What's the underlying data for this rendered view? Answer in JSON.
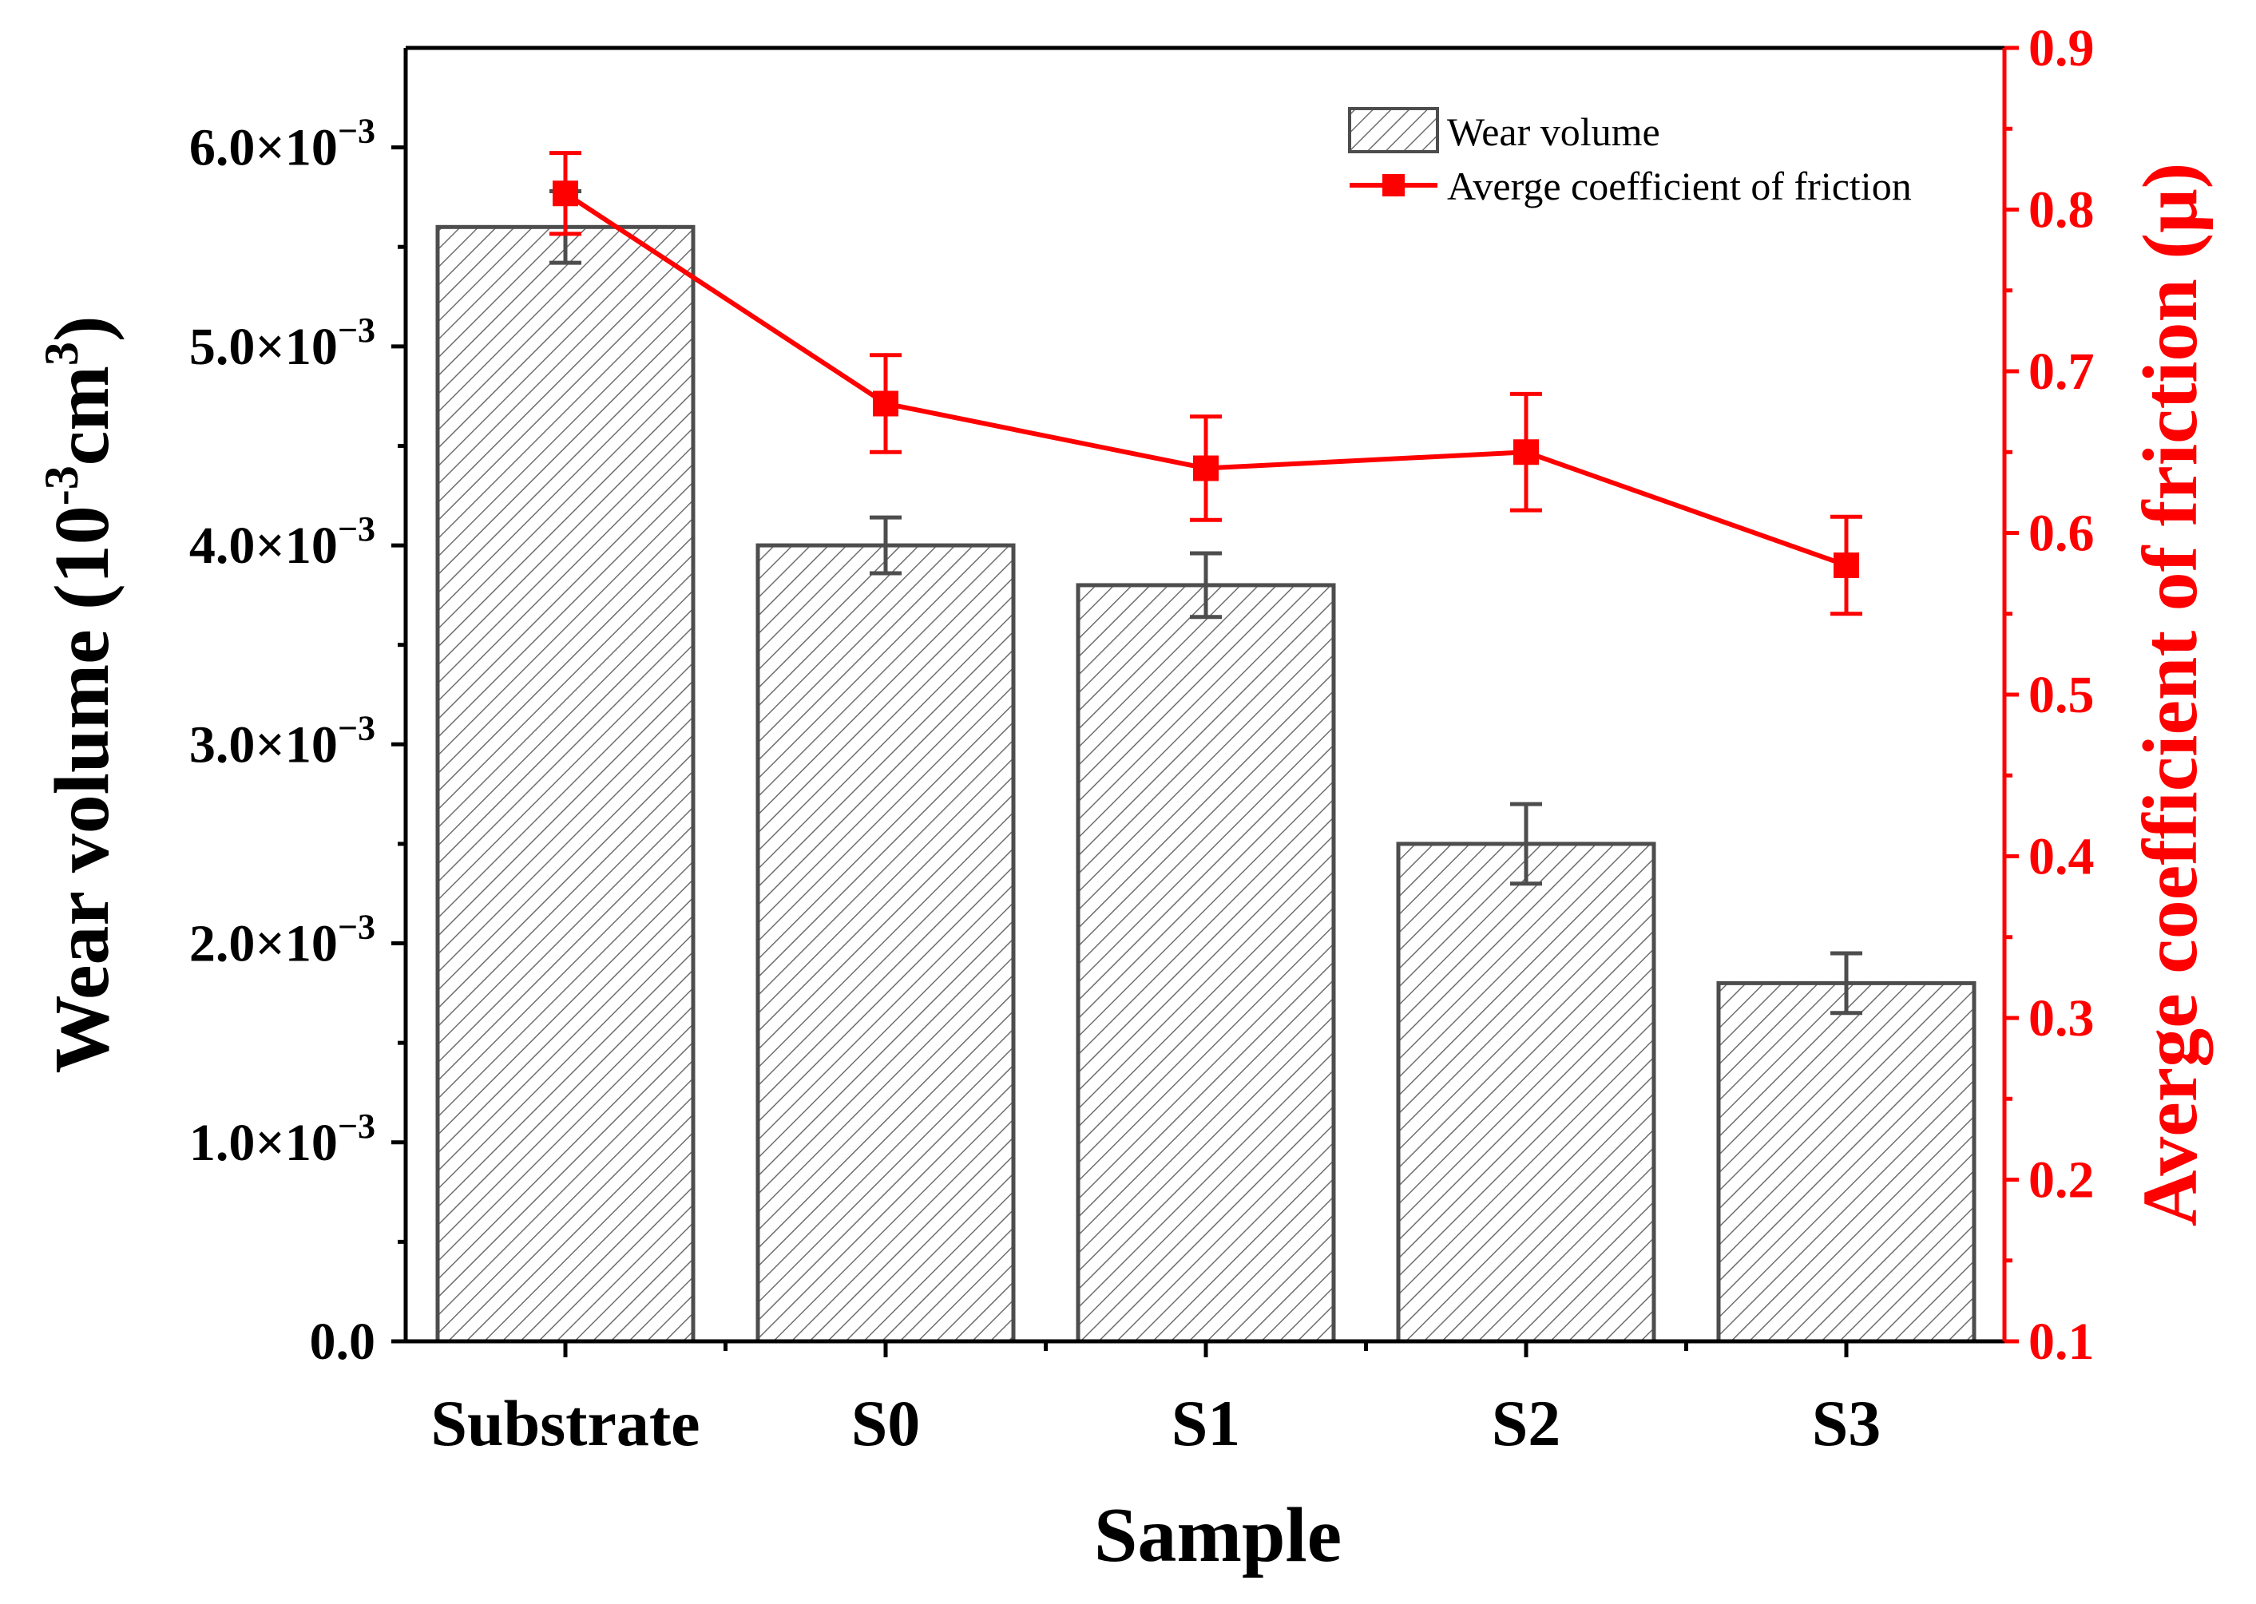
{
  "colors": {
    "bar_stroke": "#4d4d4d",
    "hatch": "#6e6e6e",
    "friction": "#ff0000",
    "axis": "#000000"
  },
  "chart_data": {
    "type": "bar+line",
    "categories": [
      "Substrate",
      "S0",
      "S1",
      "S2",
      "S3"
    ],
    "xlabel": "Sample",
    "ylabel_main": "Wear volume (10",
    "ylabel_sup1": "-3",
    "ylabel_mid": "cm",
    "ylabel_sup2": "3",
    "ylabel_end": ")",
    "y2label": "Averge coefficient of friction (μ)",
    "ylim": [
      0,
      0.0065
    ],
    "y2lim": [
      0.1,
      0.9
    ],
    "y_ticks": [
      {
        "value": 0,
        "mant": "0.0",
        "exp": ""
      },
      {
        "value": 0.001,
        "mant": "1.0×10",
        "exp": "−3"
      },
      {
        "value": 0.002,
        "mant": "2.0×10",
        "exp": "−3"
      },
      {
        "value": 0.003,
        "mant": "3.0×10",
        "exp": "−3"
      },
      {
        "value": 0.004,
        "mant": "4.0×10",
        "exp": "−3"
      },
      {
        "value": 0.005,
        "mant": "5.0×10",
        "exp": "−3"
      },
      {
        "value": 0.006,
        "mant": "6.0×10",
        "exp": "−3"
      }
    ],
    "y2_ticks": [
      "0.1",
      "0.2",
      "0.3",
      "0.4",
      "0.5",
      "0.6",
      "0.7",
      "0.8",
      "0.9"
    ],
    "series": [
      {
        "name": "Wear volume",
        "kind": "bar",
        "values": [
          0.0056,
          0.004,
          0.0038,
          0.0025,
          0.0018
        ],
        "errors": [
          0.00018,
          0.00014,
          0.00016,
          0.0002,
          0.00015
        ]
      },
      {
        "name": "Averge coefficient of friction",
        "kind": "line",
        "axis": "right",
        "values": [
          0.81,
          0.68,
          0.64,
          0.65,
          0.58
        ],
        "errors": [
          0.025,
          0.03,
          0.032,
          0.036,
          0.03
        ]
      }
    ],
    "legend": {
      "position": "top-right",
      "items": [
        "Wear volume",
        "Averge coefficient of friction"
      ]
    }
  }
}
